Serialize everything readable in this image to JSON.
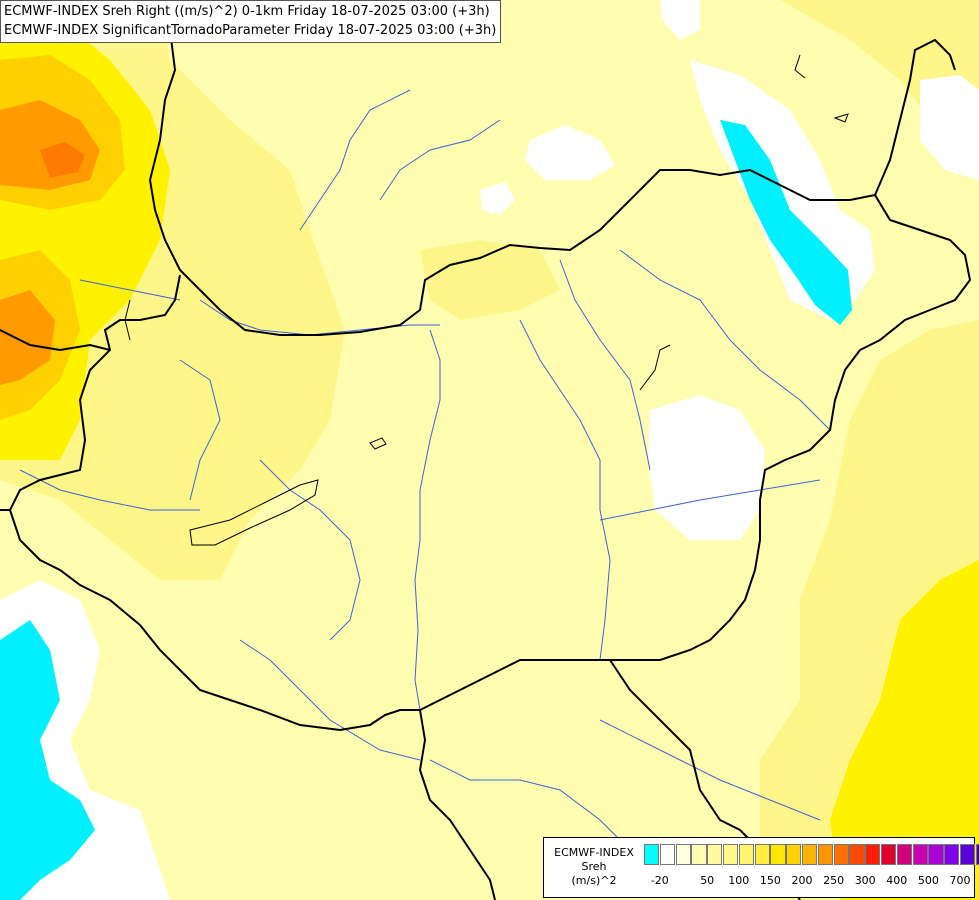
{
  "header": {
    "line1": "ECMWF-INDEX Sreh Right ((m/s)^2) 0-1km Friday 18-07-2025 03:00 (+3h)",
    "line2": "ECMWF-INDEX SignificantTornadoParameter Friday 18-07-2025 03:00 (+3h)"
  },
  "legend": {
    "title_line1": "ECMWF-INDEX",
    "title_line2": "Sreh",
    "title_line3": "(m/s)^2",
    "colors": [
      "#00ffff",
      "#ffffff",
      "#ffffe0",
      "#fffdb0",
      "#fffaa0",
      "#fff88a",
      "#fff470",
      "#ffee40",
      "#ffe800",
      "#ffd200",
      "#ffb400",
      "#ff9600",
      "#ff7000",
      "#ff4800",
      "#ff1e00",
      "#e00030",
      "#d0007a",
      "#c800b4",
      "#a800d8",
      "#8000e8",
      "#5a00d8",
      "#3c00b8",
      "#0a0a7a"
    ],
    "ticks": [
      "-20",
      "50",
      "100",
      "150",
      "200",
      "250",
      "300",
      "400",
      "500",
      "700"
    ]
  },
  "palette": {
    "cyan": "#00f0ff",
    "white": "#ffffff",
    "pale_yellow": "#fffdb0",
    "yellow": "#fff36a",
    "bright_yellow": "#fff200",
    "gold": "#ffd000",
    "orange": "#ff9a00",
    "dark_orange": "#ff7a00",
    "border": "#000000",
    "river": "#3a64d8"
  }
}
